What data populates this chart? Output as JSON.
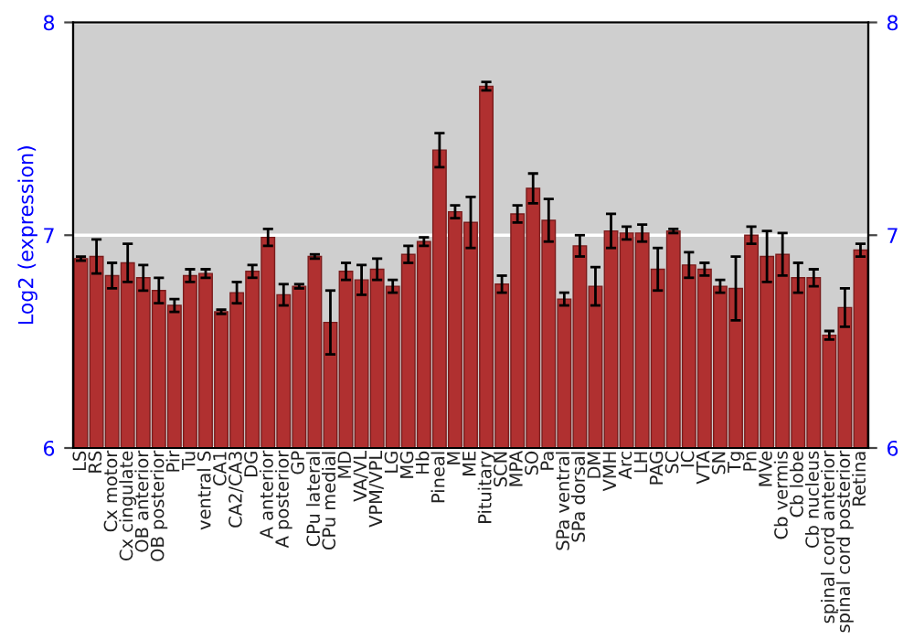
{
  "chart_data": {
    "type": "bar",
    "ylabel": "Log2 (expression)",
    "categories": [
      "LS",
      "RS",
      "Cx motor",
      "Cx cingulate",
      "OB anterior",
      "OB posterior",
      "Pir",
      "Tu",
      "ventral S",
      "CA1",
      "CA2/CA3",
      "DG",
      "A anterior",
      "A posterior",
      "GP",
      "CPu lateral",
      "CPu medial",
      "MD",
      "VA/VL",
      "VPM/VPL",
      "LG",
      "MG",
      "Hb",
      "Pineal",
      "M",
      "ME",
      "Pituitary",
      "SCN",
      "MPA",
      "SO",
      "Pa",
      "SPa ventral",
      "SPa dorsal",
      "DM",
      "VMH",
      "Arc",
      "LH",
      "PAG",
      "SC",
      "IC",
      "VTA",
      "SN",
      "Tg",
      "Pn",
      "MVe",
      "Cb vermis",
      "Cb lobe",
      "Cb nucleus",
      "spinal cord anterior",
      "spinal cord posterior",
      "Retina"
    ],
    "values": [
      6.89,
      6.9,
      6.81,
      6.87,
      6.8,
      6.74,
      6.67,
      6.81,
      6.82,
      6.64,
      6.73,
      6.83,
      6.99,
      6.72,
      6.76,
      6.9,
      6.59,
      6.83,
      6.79,
      6.84,
      6.76,
      6.91,
      6.97,
      7.4,
      7.11,
      7.06,
      7.7,
      6.77,
      7.1,
      7.22,
      7.07,
      6.7,
      6.95,
      6.76,
      7.02,
      7.01,
      7.01,
      6.84,
      7.02,
      6.86,
      6.84,
      6.76,
      6.75,
      7.0,
      6.9,
      6.91,
      6.8,
      6.8,
      6.53,
      6.66,
      6.93
    ],
    "errors": [
      0.01,
      0.08,
      0.06,
      0.09,
      0.06,
      0.06,
      0.03,
      0.03,
      0.02,
      0.01,
      0.05,
      0.03,
      0.04,
      0.05,
      0.01,
      0.01,
      0.15,
      0.04,
      0.07,
      0.05,
      0.03,
      0.04,
      0.02,
      0.08,
      0.03,
      0.12,
      0.02,
      0.04,
      0.04,
      0.07,
      0.1,
      0.03,
      0.05,
      0.09,
      0.08,
      0.03,
      0.04,
      0.1,
      0.01,
      0.06,
      0.03,
      0.03,
      0.15,
      0.04,
      0.12,
      0.1,
      0.07,
      0.04,
      0.02,
      0.09,
      0.03
    ],
    "color": "#b03030",
    "ylim": [
      6,
      8
    ],
    "yticks": [
      6,
      7,
      8
    ],
    "y2lim": [
      6,
      8
    ],
    "y2ticks": [
      6,
      7,
      8
    ],
    "grid": "y"
  }
}
